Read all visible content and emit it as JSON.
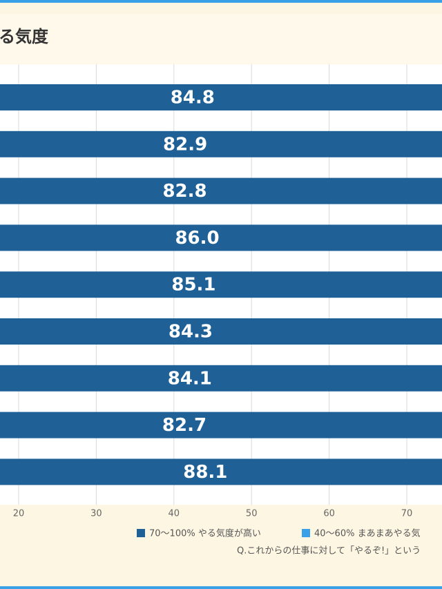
{
  "chart_data": {
    "type": "bar",
    "title": "る気度",
    "categories": [
      null,
      null,
      null,
      null,
      null,
      null,
      null,
      null,
      null
    ],
    "series": [
      {
        "name": "70～100% やる気度が高い",
        "color": "#1f6197",
        "values": [
          84.8,
          82.9,
          82.8,
          86.0,
          85.1,
          84.3,
          84.1,
          82.7,
          88.1
        ],
        "value_labels": [
          "84.8",
          "82.9",
          "82.8",
          "86.0",
          "85.1",
          "84.3",
          "84.1",
          "82.7",
          "88.1"
        ]
      },
      {
        "name": "40～60% まあまあやる気",
        "color": "#3aa0e8",
        "values": [
          null,
          null,
          null,
          null,
          null,
          null,
          null,
          null,
          null
        ]
      }
    ],
    "xlim": [
      0,
      100
    ],
    "xticks": [
      20,
      30,
      40,
      50,
      60,
      70
    ],
    "grid": true,
    "note": "Q.これからの仕事に対して「やるぞ!」という"
  }
}
